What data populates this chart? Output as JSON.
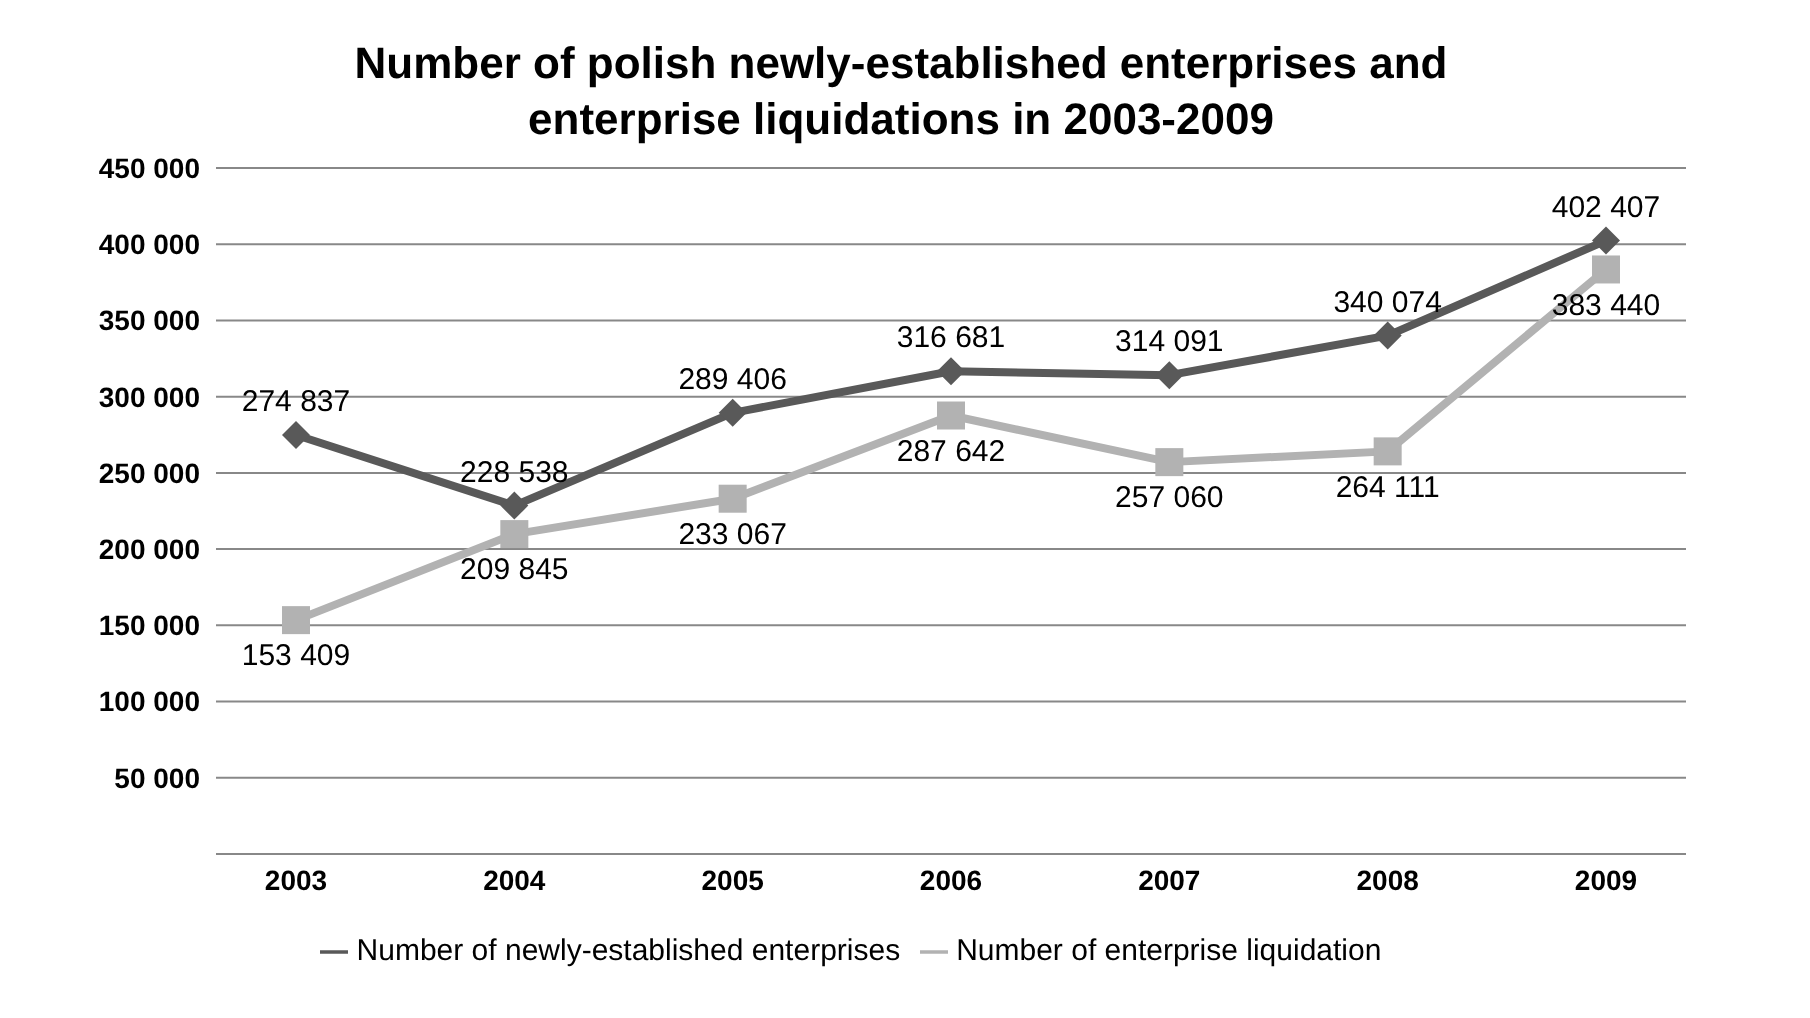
{
  "chart_data": {
    "type": "line",
    "title": "Number of polish newly-established enterprises and enterprise liquidations in 2003-2009",
    "categories": [
      "2003",
      "2004",
      "2005",
      "2006",
      "2007",
      "2008",
      "2009"
    ],
    "series": [
      {
        "name": "Number of newly-established enterprises",
        "color": "#595959",
        "marker": "diamond",
        "values": [
          274837,
          228538,
          289406,
          316681,
          314091,
          340074,
          402407
        ],
        "value_labels": [
          "274 837",
          "228 538",
          "289 406",
          "316 681",
          "314 091",
          "340 074",
          "402 407"
        ]
      },
      {
        "name": "Number of enterprise liquidation",
        "color": "#b2b2b2",
        "marker": "square",
        "values": [
          153409,
          209845,
          233067,
          287642,
          257060,
          264111,
          383440
        ],
        "value_labels": [
          "153 409",
          "209 845",
          "233 067",
          "287 642",
          "257 060",
          "264 111",
          "383 440"
        ]
      }
    ],
    "ylim": [
      0,
      450000
    ],
    "yticks": [
      50000,
      100000,
      150000,
      200000,
      250000,
      300000,
      350000,
      400000,
      450000
    ],
    "grid": "y",
    "legend": "bottom"
  }
}
